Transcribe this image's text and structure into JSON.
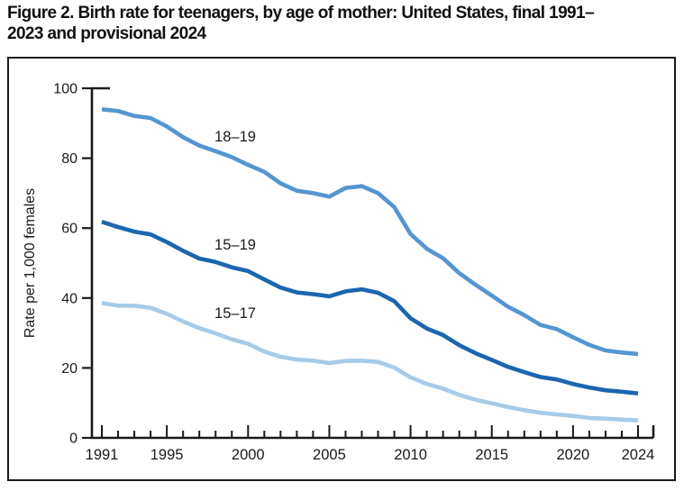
{
  "figure": {
    "title": "Figure 2. Birth rate for teenagers, by age of mother: United States, final 1991–2023 and provisional 2024"
  },
  "chart_data": {
    "type": "line",
    "title": "Figure 2. Birth rate for teenagers, by age of mother: United States, final 1991–2023 and provisional 2024",
    "xlabel": "",
    "ylabel": "Rate per 1,000 females",
    "x": [
      1991,
      1992,
      1993,
      1994,
      1995,
      1996,
      1997,
      1998,
      1999,
      2000,
      2001,
      2002,
      2003,
      2004,
      2005,
      2006,
      2007,
      2008,
      2009,
      2010,
      2011,
      2012,
      2013,
      2014,
      2015,
      2016,
      2017,
      2018,
      2019,
      2020,
      2021,
      2022,
      2023,
      2024
    ],
    "x_labeled_ticks": [
      1991,
      1995,
      2000,
      2005,
      2010,
      2015,
      2020,
      2024
    ],
    "ylim": [
      0,
      100
    ],
    "yticks": [
      0,
      20,
      40,
      60,
      80,
      100
    ],
    "grid": false,
    "legend_position": "inline-line-labels",
    "series": [
      {
        "name": "18–19",
        "color": "#5596d0",
        "values": [
          94.0,
          93.5,
          92.1,
          91.5,
          89.1,
          86.0,
          83.6,
          82.0,
          80.3,
          78.1,
          76.1,
          72.8,
          70.7,
          70.0,
          69.0,
          71.5,
          72.0,
          70.0,
          66.0,
          58.3,
          54.1,
          51.4,
          47.1,
          43.8,
          40.7,
          37.5,
          35.1,
          32.3,
          31.1,
          28.8,
          26.6,
          25.0,
          24.4,
          24.0
        ]
      },
      {
        "name": "15–19",
        "color": "#1b66af",
        "values": [
          61.8,
          60.3,
          59.0,
          58.2,
          56.0,
          53.5,
          51.3,
          50.3,
          48.8,
          47.7,
          45.3,
          43.0,
          41.6,
          41.1,
          40.5,
          41.9,
          42.5,
          41.5,
          39.1,
          34.2,
          31.3,
          29.4,
          26.5,
          24.2,
          22.3,
          20.3,
          18.8,
          17.4,
          16.7,
          15.4,
          14.4,
          13.6,
          13.2,
          12.7
        ]
      },
      {
        "name": "15–17",
        "color": "#a7cbe8",
        "values": [
          38.6,
          37.8,
          37.8,
          37.2,
          35.5,
          33.3,
          31.4,
          29.9,
          28.2,
          26.9,
          24.7,
          23.2,
          22.4,
          22.1,
          21.4,
          22.0,
          22.1,
          21.7,
          20.1,
          17.3,
          15.4,
          14.1,
          12.3,
          10.9,
          9.9,
          8.8,
          7.9,
          7.2,
          6.7,
          6.3,
          5.7,
          5.5,
          5.2,
          5.0
        ]
      }
    ]
  },
  "style": {
    "axis_color": "#1a1a1a",
    "text_color": "#1a1a1a"
  }
}
